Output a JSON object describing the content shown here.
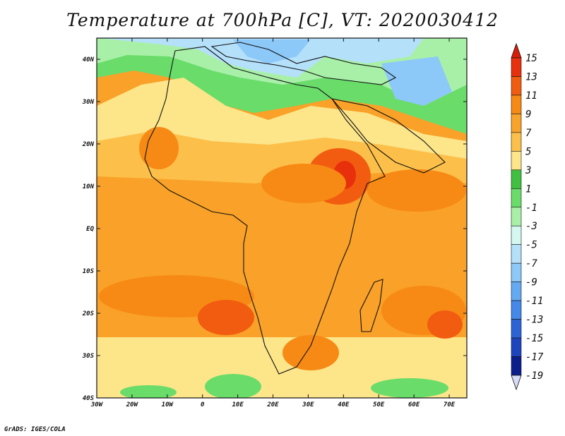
{
  "title": "Temperature at 700hPa [C], VT: 2020030412",
  "credit": "GrADS: IGES/COLA",
  "map": {
    "lon_labels": [
      "30W",
      "20W",
      "10W",
      "0",
      "10E",
      "20E",
      "30E",
      "40E",
      "50E",
      "60E",
      "70E"
    ],
    "lat_labels": [
      "40N",
      "30N",
      "20N",
      "10N",
      "EQ",
      "10S",
      "20S",
      "30S",
      "40S"
    ]
  },
  "colorbar": {
    "labels": [
      "15",
      "13",
      "11",
      "9",
      "7",
      "5",
      "3",
      "1",
      "-1",
      "-3",
      "-5",
      "-7",
      "-9",
      "-11",
      "-13",
      "-15",
      "-17",
      "-19"
    ],
    "colors": [
      "#e8300c",
      "#f25c10",
      "#f78a14",
      "#faa32a",
      "#fcc04a",
      "#fde58a",
      "#40c040",
      "#6adc6a",
      "#a8f0a8",
      "#d4f8f0",
      "#b4e0fa",
      "#8cc8f8",
      "#64aaf2",
      "#4488ea",
      "#2c64d8",
      "#1e44c0",
      "#0c1e8c"
    ],
    "top_color": "#d81e08",
    "bottom_color": "#d6dcf8"
  }
}
